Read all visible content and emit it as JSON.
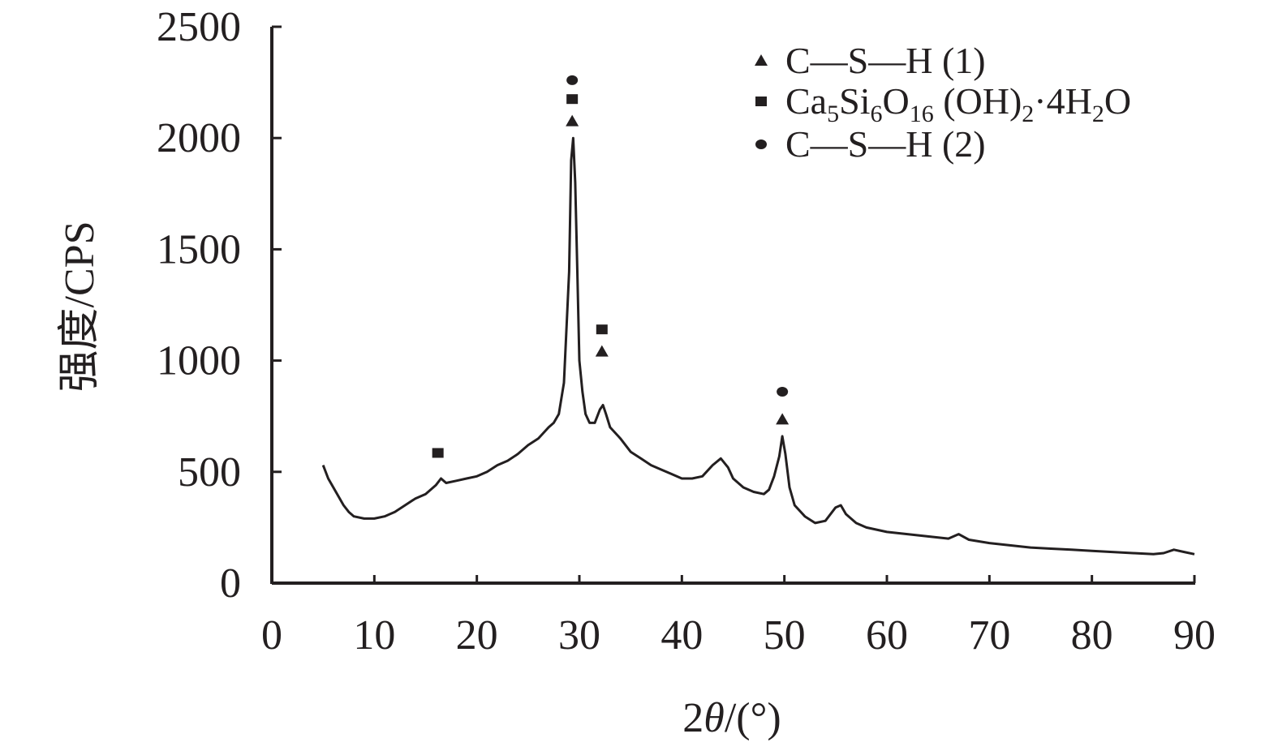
{
  "chart_data": {
    "type": "line",
    "title": "",
    "xlabel_prefix": "2",
    "xlabel_theta": "θ",
    "xlabel_suffix": "/(°)",
    "ylabel": "强度/CPS",
    "xlim": [
      0,
      90
    ],
    "ylim": [
      0,
      2500
    ],
    "xticks": [
      0,
      10,
      20,
      30,
      40,
      50,
      60,
      70,
      80,
      90
    ],
    "yticks": [
      0,
      500,
      1000,
      1500,
      2000,
      2500
    ],
    "grid": false,
    "legend_position": "top-right",
    "legend": [
      {
        "marker": "triangle",
        "parts": [
          {
            "t": "C—S—H (1)"
          }
        ]
      },
      {
        "marker": "square",
        "parts": [
          {
            "t": "Ca"
          },
          {
            "t": "5",
            "sub": true
          },
          {
            "t": "Si"
          },
          {
            "t": "6",
            "sub": true
          },
          {
            "t": "O"
          },
          {
            "t": "16",
            "sub": true
          },
          {
            "t": " (OH)"
          },
          {
            "t": "2",
            "sub": true
          },
          {
            "t": "·4H"
          },
          {
            "t": "2",
            "sub": true
          },
          {
            "t": "O"
          }
        ]
      },
      {
        "marker": "circle",
        "parts": [
          {
            "t": "C—S—H (2)"
          }
        ]
      }
    ],
    "series": [
      {
        "color": "#231f20",
        "x": [
          5,
          5.5,
          6,
          6.5,
          7,
          7.5,
          8,
          9,
          10,
          11,
          12,
          13,
          14,
          15,
          16,
          16.5,
          17,
          18,
          19,
          20,
          21,
          22,
          23,
          24,
          25,
          26,
          27,
          27.5,
          28,
          28.5,
          29,
          29.2,
          29.4,
          29.6,
          29.8,
          30,
          30.3,
          30.6,
          31,
          31.5,
          32,
          32.3,
          32.6,
          33,
          34,
          35,
          36,
          37,
          38,
          39,
          40,
          41,
          42,
          43,
          43.8,
          44.5,
          45,
          46,
          47,
          48,
          48.5,
          49,
          49.5,
          49.8,
          50.1,
          50.5,
          51,
          52,
          53,
          54,
          55,
          55.5,
          56,
          57,
          58,
          60,
          62,
          64,
          66,
          67,
          68,
          70,
          72,
          74,
          76,
          78,
          80,
          82,
          84,
          86,
          87,
          88,
          89,
          90
        ],
        "y": [
          530,
          470,
          430,
          390,
          350,
          320,
          300,
          290,
          290,
          300,
          320,
          350,
          380,
          400,
          440,
          470,
          450,
          460,
          470,
          480,
          500,
          530,
          550,
          580,
          620,
          650,
          700,
          720,
          760,
          900,
          1400,
          1900,
          2000,
          1800,
          1400,
          1000,
          860,
          760,
          720,
          720,
          780,
          800,
          760,
          700,
          650,
          590,
          560,
          530,
          510,
          490,
          470,
          470,
          480,
          530,
          560,
          520,
          470,
          430,
          410,
          400,
          420,
          480,
          570,
          660,
          580,
          430,
          350,
          300,
          270,
          280,
          340,
          350,
          310,
          270,
          250,
          230,
          220,
          210,
          200,
          220,
          195,
          180,
          170,
          160,
          155,
          150,
          145,
          140,
          135,
          130,
          135,
          150,
          140,
          130
        ]
      }
    ],
    "annotations": [
      {
        "marker": "square",
        "x": 16.2,
        "y": 585
      },
      {
        "marker": "triangle",
        "x": 29.3,
        "y": 2075
      },
      {
        "marker": "square",
        "x": 29.3,
        "y": 2175
      },
      {
        "marker": "circle",
        "x": 29.3,
        "y": 2260
      },
      {
        "marker": "triangle",
        "x": 32.2,
        "y": 1040
      },
      {
        "marker": "square",
        "x": 32.2,
        "y": 1140
      },
      {
        "marker": "triangle",
        "x": 49.8,
        "y": 735
      },
      {
        "marker": "circle",
        "x": 49.8,
        "y": 860
      }
    ]
  }
}
